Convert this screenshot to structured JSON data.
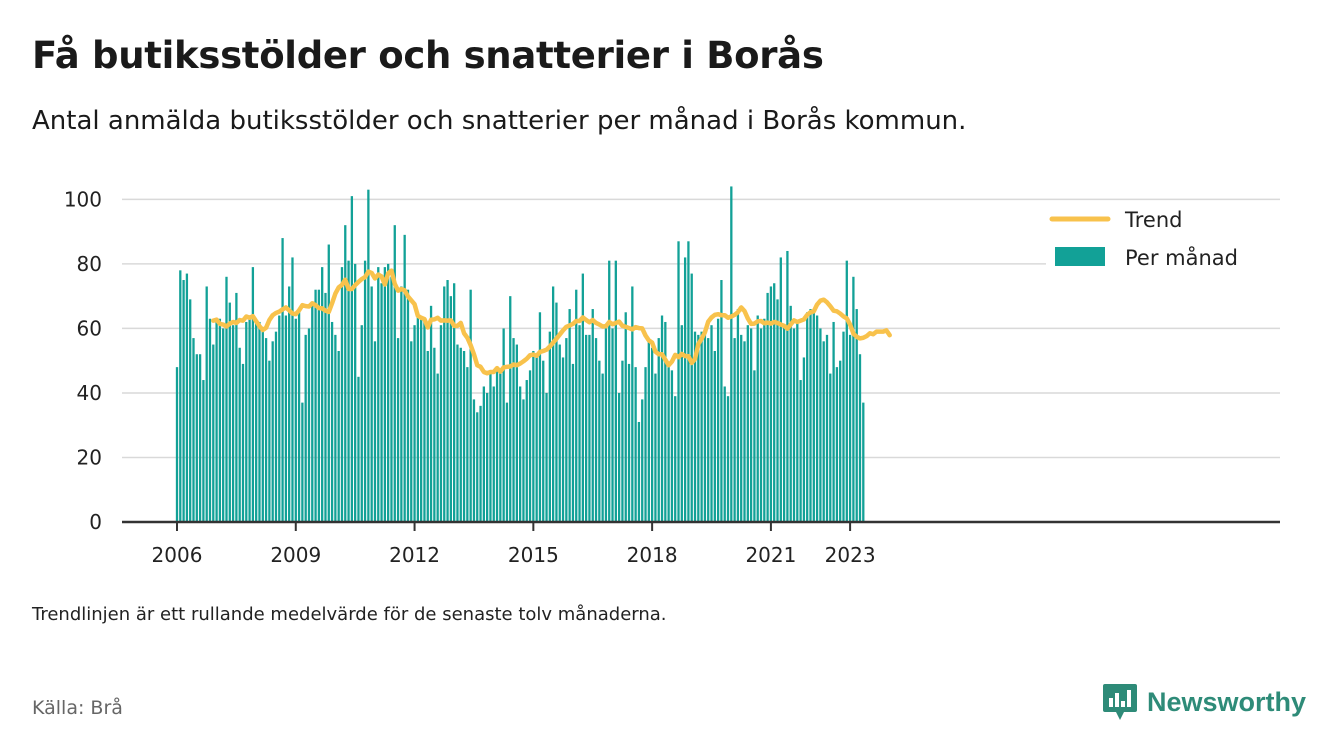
{
  "header": {
    "title": "Få butiksstölder och snatterier i Borås",
    "subtitle": "Antal anmälda butiksstölder och snatterier per månad i Borås kommun."
  },
  "footer": {
    "note": "Trendlinjen är ett rullande medelvärde för de senaste tolv månaderna.",
    "source": "Källa: Brå",
    "brand": "Newsworthy"
  },
  "colors": {
    "bar": "#12a197",
    "trend": "#f8c24c",
    "grid": "#d9d9d9",
    "axis": "#333333",
    "brand": "#2e8b78"
  },
  "chart_data": {
    "type": "bar",
    "x_start": "2006-01",
    "x_ticks": [
      "2006",
      "2009",
      "2012",
      "2015",
      "2018",
      "2021",
      "2023"
    ],
    "y_ticks": [
      "0",
      "20",
      "40",
      "60",
      "80",
      "100"
    ],
    "ylim": [
      0,
      106
    ],
    "legend": {
      "placement": "top-right",
      "trend_label": "Trend",
      "bar_label": "Per månad"
    },
    "series": [
      {
        "name": "Per månad",
        "type": "bar",
        "values": [
          48,
          78,
          75,
          77,
          69,
          57,
          52,
          52,
          44,
          73,
          63,
          55,
          63,
          63,
          60,
          76,
          68,
          61,
          71,
          54,
          49,
          62,
          64,
          79,
          62,
          62,
          60,
          57,
          50,
          56,
          59,
          64,
          88,
          64,
          73,
          82,
          63,
          66,
          37,
          58,
          60,
          67,
          72,
          72,
          79,
          71,
          86,
          62,
          58,
          53,
          79,
          92,
          81,
          101,
          80,
          45,
          61,
          81,
          103,
          73,
          56,
          79,
          74,
          79,
          80,
          76,
          92,
          57,
          73,
          89,
          72,
          56,
          61,
          65,
          63,
          62,
          53,
          67,
          54,
          46,
          61,
          73,
          75,
          70,
          74,
          55,
          54,
          53,
          48,
          72,
          38,
          34,
          36,
          42,
          40,
          47,
          42,
          48,
          46,
          60,
          37,
          70,
          57,
          55,
          42,
          38,
          44,
          47,
          53,
          52,
          65,
          50,
          40,
          59,
          73,
          68,
          55,
          51,
          57,
          66,
          49,
          72,
          61,
          77,
          58,
          58,
          66,
          57,
          50,
          46,
          60,
          81,
          60,
          81,
          40,
          50,
          65,
          49,
          73,
          48,
          31,
          38,
          48,
          56,
          54,
          46,
          57,
          64,
          62,
          48,
          47,
          39,
          87,
          61,
          82,
          87,
          77,
          59,
          58,
          59,
          59,
          57,
          61,
          53,
          63,
          75,
          42,
          39,
          104,
          57,
          66,
          58,
          56,
          61,
          60,
          47,
          64,
          60,
          63,
          71,
          73,
          74,
          69,
          82,
          61,
          84,
          67,
          60,
          62,
          44,
          51,
          65,
          66,
          65,
          64,
          60,
          56,
          58,
          46,
          62,
          48,
          50,
          59,
          81,
          58,
          76,
          66,
          52,
          37
        ]
      },
      {
        "name": "Trend",
        "type": "line",
        "start_index": 11,
        "values": [
          62.4,
          62.7,
          61.4,
          61.2,
          60.6,
          61.5,
          62.0,
          61.7,
          62.6,
          62.4,
          63.7,
          63.3,
          63.8,
          62.2,
          60.7,
          59.5,
          60.2,
          62.6,
          64.1,
          64.8,
          65.2,
          65.9,
          66.5,
          65.6,
          64.6,
          64.4,
          65.6,
          67.2,
          66.9,
          66.8,
          67.8,
          67.2,
          66.3,
          66.2,
          65.5,
          65.1,
          67.8,
          70.8,
          72.7,
          73.5,
          75.1,
          72.2,
          72.2,
          73.4,
          74.4,
          75.3,
          75.9,
          77.6,
          77.2,
          75.5,
          76.7,
          76.1,
          73.6,
          77.1,
          77.9,
          73.8,
          71.7,
          72.2,
          71.8,
          69.9,
          68.7,
          67.5,
          63.9,
          63.3,
          62.9,
          60.3,
          62.7,
          62.8,
          63.3,
          62.4,
          62.5,
          62.4,
          62.5,
          60.8,
          60.8,
          61.7,
          58.5,
          57.1,
          54.8,
          52.0,
          48.6,
          48.1,
          46.5,
          46.1,
          46.5,
          46.5,
          47.7,
          46.6,
          47.9,
          48.1,
          48.2,
          48.8,
          48.6,
          49.1,
          49.8,
          50.6,
          51.7,
          51.9,
          51.5,
          52.7,
          53.0,
          53.4,
          54.4,
          55.6,
          56.8,
          58.1,
          59.4,
          60.5,
          60.9,
          61.4,
          62.3,
          62.3,
          63.4,
          62.6,
          61.9,
          62.6,
          61.7,
          61.2,
          60.6,
          60.7,
          62.0,
          61.3,
          61.7,
          62.1,
          60.8,
          60.5,
          60.1,
          59.7,
          60.4,
          60.1,
          60.0,
          57.8,
          56.3,
          55.6,
          52.8,
          52.0,
          52.0,
          50.3,
          48.6,
          49.7,
          51.8,
          51.1,
          52.1,
          51.4,
          51.4,
          49.3,
          50.5,
          55.1,
          56.8,
          58.8,
          62.1,
          63.4,
          64.2,
          64.4,
          64.1,
          64.1,
          63.3,
          63.7,
          64.2,
          65.0,
          66.5,
          65.4,
          63.1,
          61.4,
          61.5,
          62.2,
          62.3,
          61.6,
          61.8,
          61.5,
          62.0,
          61.7,
          61.2,
          60.8,
          59.9,
          61.2,
          62.5,
          62.0,
          62.4,
          62.8,
          64.2,
          65.0,
          65.3,
          67.4,
          68.6,
          68.9,
          68.1,
          66.9,
          65.5,
          65.3,
          64.6,
          63.7,
          63.1,
          61.2,
          58.4,
          57.4,
          56.9,
          57.1,
          57.6,
          58.5,
          58.2,
          59.0,
          59.0,
          59.0,
          59.4,
          57.9
        ]
      }
    ]
  }
}
